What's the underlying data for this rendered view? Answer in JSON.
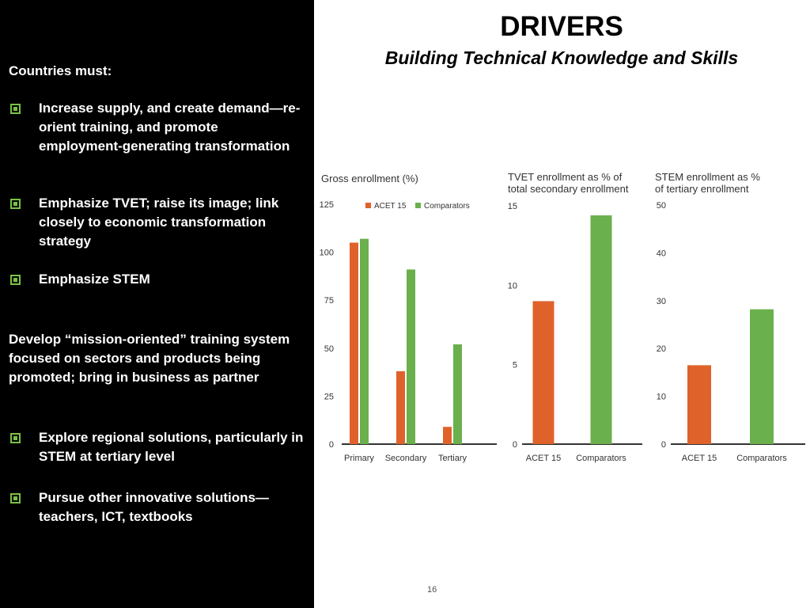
{
  "slide": {
    "title": "DRIVERS",
    "subtitle": "Building Technical Knowledge and Skills",
    "page_number": "16"
  },
  "left_panel": {
    "heading": "Countries must:",
    "bullets_top": [
      "Increase supply, and create demand—re-orient training, and promote employment-generating transformation",
      "Emphasize TVET; raise its image; link closely to economic transformation strategy",
      "Emphasize STEM"
    ],
    "paragraph": "Develop “mission-oriented” training system focused on sectors and products being promoted; bring in business as partner",
    "bullets_bottom": [
      "Explore regional solutions, particularly in STEM at tertiary level",
      "Pursue other innovative solutions—teachers, ICT, textbooks"
    ]
  },
  "colors": {
    "acet": "#e0622b",
    "comparators": "#6ab04c",
    "bullet": "#7ac143"
  },
  "chart_data": [
    {
      "type": "bar",
      "title": "Gross enrollment (%)",
      "categories": [
        "Primary",
        "Secondary",
        "Tertiary"
      ],
      "series": [
        {
          "name": "ACET 15",
          "values": [
            105,
            38,
            9
          ]
        },
        {
          "name": "Comparators",
          "values": [
            107,
            91,
            52
          ]
        }
      ],
      "ylim": [
        0,
        125
      ],
      "yticks": [
        "0",
        "25",
        "50",
        "75",
        "100",
        "125"
      ],
      "legend": "top"
    },
    {
      "type": "bar",
      "title_lines": [
        "TVET enrollment as % of",
        "total secondary enrollment"
      ],
      "categories": [
        "ACET 15",
        "Comparators"
      ],
      "values": [
        9,
        14.4
      ],
      "ylim": [
        0,
        15
      ],
      "yticks": [
        "0",
        "5",
        "10",
        "15"
      ]
    },
    {
      "type": "bar",
      "title_lines": [
        "STEM enrollment as %",
        "of tertiary enrollment"
      ],
      "categories": [
        "ACET 15",
        "Comparators"
      ],
      "values": [
        16.5,
        28.2
      ],
      "ylim": [
        0,
        50
      ],
      "yticks": [
        "0",
        "10",
        "20",
        "30",
        "40",
        "50"
      ]
    }
  ]
}
